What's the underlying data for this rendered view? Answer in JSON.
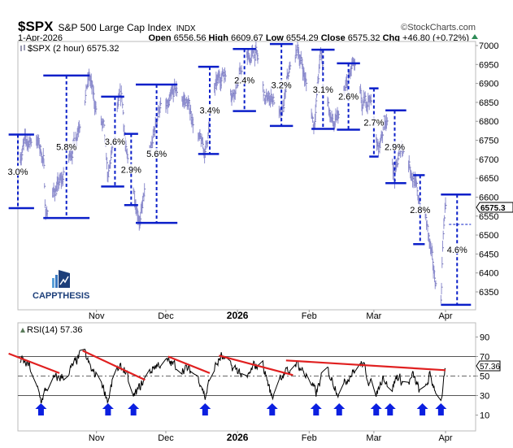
{
  "header": {
    "symbol": "$SPX",
    "name": "S&P 500 Large Cap Index",
    "exchange": "INDX",
    "copyright": "©StockCharts.com",
    "date": "1-Apr-2026",
    "open_label": "Open",
    "open": "6556.56",
    "high_label": "High",
    "high": "6609.67",
    "low_label": "Low",
    "low": "6554.29",
    "close_label": "Close",
    "close": "6575.32",
    "chg_label": "Chg",
    "chg": "+46.80 (+0.72%)",
    "up_color": "#2e8b57"
  },
  "logo": {
    "text": "CAPPTHESIS"
  },
  "chart_data": [
    {
      "type": "ohlc-bars",
      "legend": "$SPX (2 hour) 6575.32",
      "last_value_tag": "6575.3",
      "bar_color": "#8f8fcf",
      "annotation_color": "#0b1fc9",
      "ylim": [
        6310,
        7015
      ],
      "yticks": [
        6350,
        6400,
        6450,
        6500,
        6550,
        6600,
        6650,
        6700,
        6750,
        6800,
        6850,
        6900,
        6950,
        7000
      ],
      "xlim": [
        "2025-09-28",
        "2026-04-14"
      ],
      "xticks": [
        {
          "date": "2025-11-01",
          "label": "Nov"
        },
        {
          "date": "2025-12-01",
          "label": "Dec"
        },
        {
          "date": "2026-01-01",
          "label": "2026",
          "bold": true
        },
        {
          "date": "2026-02-01",
          "label": "Feb"
        },
        {
          "date": "2026-03-01",
          "label": "Mar"
        },
        {
          "date": "2026-04-01",
          "label": "Apr"
        }
      ],
      "price_path": [
        [
          "2025-09-28",
          6700
        ],
        [
          "2025-10-01",
          6740
        ],
        [
          "2025-10-06",
          6760
        ],
        [
          "2025-10-09",
          6700
        ],
        [
          "2025-10-10",
          6560
        ],
        [
          "2025-10-14",
          6620
        ],
        [
          "2025-10-17",
          6640
        ],
        [
          "2025-10-20",
          6700
        ],
        [
          "2025-10-23",
          6760
        ],
        [
          "2025-10-27",
          6880
        ],
        [
          "2025-10-29",
          6915
        ],
        [
          "2025-10-31",
          6850
        ],
        [
          "2025-11-04",
          6780
        ],
        [
          "2025-11-06",
          6640
        ],
        [
          "2025-11-10",
          6830
        ],
        [
          "2025-11-12",
          6860
        ],
        [
          "2025-11-14",
          6700
        ],
        [
          "2025-11-17",
          6620
        ],
        [
          "2025-11-20",
          6540
        ],
        [
          "2025-11-24",
          6700
        ],
        [
          "2025-11-28",
          6840
        ],
        [
          "2025-12-02",
          6830
        ],
        [
          "2025-12-05",
          6880
        ],
        [
          "2025-12-10",
          6850
        ],
        [
          "2025-12-12",
          6820
        ],
        [
          "2025-12-16",
          6740
        ],
        [
          "2025-12-18",
          6720
        ],
        [
          "2025-12-22",
          6880
        ],
        [
          "2025-12-26",
          6935
        ],
        [
          "2025-12-30",
          6880
        ],
        [
          "2026-01-05",
          6960
        ],
        [
          "2026-01-09",
          6980
        ],
        [
          "2026-01-13",
          6850
        ],
        [
          "2026-01-16",
          6870
        ],
        [
          "2026-01-20",
          6800
        ],
        [
          "2026-01-23",
          6920
        ],
        [
          "2026-01-27",
          6990
        ],
        [
          "2026-01-29",
          6950
        ],
        [
          "2026-02-03",
          6790
        ],
        [
          "2026-02-06",
          6980
        ],
        [
          "2026-02-10",
          6820
        ],
        [
          "2026-02-12",
          6780
        ],
        [
          "2026-02-16",
          6860
        ],
        [
          "2026-02-20",
          6950
        ],
        [
          "2026-02-24",
          6830
        ],
        [
          "2026-02-27",
          6870
        ],
        [
          "2026-03-03",
          6720
        ],
        [
          "2026-03-06",
          6820
        ],
        [
          "2026-03-10",
          6650
        ],
        [
          "2026-03-13",
          6740
        ],
        [
          "2026-03-17",
          6680
        ],
        [
          "2026-03-20",
          6600
        ],
        [
          "2026-03-23",
          6560
        ],
        [
          "2026-03-25",
          6480
        ],
        [
          "2026-03-27",
          6390
        ],
        [
          "2026-03-30",
          6330
        ],
        [
          "2026-03-31",
          6520
        ],
        [
          "2026-04-01",
          6575.32
        ]
      ],
      "ranges": [
        {
          "start": "2025-09-24",
          "end": "2025-10-05",
          "mid": "2025-09-28",
          "high": 6765,
          "low": 6571,
          "label": "3.0%"
        },
        {
          "start": "2025-10-09",
          "end": "2025-10-29",
          "mid": "2025-10-19",
          "high": 6921,
          "low": 6545,
          "label": "5.8%"
        },
        {
          "start": "2025-11-03",
          "end": "2025-11-13",
          "mid": "2025-11-09",
          "high": 6865,
          "low": 6628,
          "label": "3.6%"
        },
        {
          "start": "2025-11-13",
          "end": "2025-11-19",
          "mid": "2025-11-16",
          "high": 6767,
          "low": 6579,
          "label": "2.9%"
        },
        {
          "start": "2025-11-18",
          "end": "2025-12-06",
          "mid": "2025-11-27",
          "high": 6897,
          "low": 6532,
          "label": "5.6%"
        },
        {
          "start": "2025-12-15",
          "end": "2025-12-24",
          "mid": "2025-12-20",
          "high": 6944,
          "low": 6714,
          "label": "3.4%"
        },
        {
          "start": "2025-12-30",
          "end": "2026-01-09",
          "mid": "2026-01-04",
          "high": 6991,
          "low": 6827,
          "label": "2.4%"
        },
        {
          "start": "2026-01-15",
          "end": "2026-01-25",
          "mid": "2026-01-20",
          "high": 7004,
          "low": 6788,
          "label": "3.2%"
        },
        {
          "start": "2026-02-02",
          "end": "2026-02-12",
          "mid": "2026-02-07",
          "high": 6989,
          "low": 6780,
          "label": "3.1%"
        },
        {
          "start": "2026-02-13",
          "end": "2026-02-23",
          "mid": "2026-02-18",
          "high": 6953,
          "low": 6778,
          "label": "2.6%"
        },
        {
          "start": "2026-02-27",
          "end": "2026-03-03",
          "mid": "2026-03-01",
          "high": 6887,
          "low": 6707,
          "label": "2.7%"
        },
        {
          "start": "2026-03-06",
          "end": "2026-03-15",
          "mid": "2026-03-10",
          "high": 6829,
          "low": 6637,
          "label": "2.9%"
        },
        {
          "start": "2026-03-18",
          "end": "2026-03-23",
          "mid": "2026-03-21",
          "high": 6658,
          "low": 6476,
          "label": "2.8%"
        },
        {
          "start": "2026-03-30",
          "end": "2026-04-12",
          "mid": "2026-04-06",
          "high": 6607,
          "low": 6316,
          "label": "4.6%",
          "midline": 6528
        }
      ]
    },
    {
      "type": "line",
      "legend": "RSI(14) 57.36",
      "last_value_tag": "57.36",
      "line_color": "#000000",
      "trendline_color": "#e02020",
      "arrow_color": "#0b1fe0",
      "ylim": [
        0,
        100
      ],
      "yticks": [
        10,
        30,
        50,
        70,
        90
      ],
      "reference_lines": [
        30,
        50,
        70
      ],
      "xlim": [
        "2025-09-28",
        "2026-04-14"
      ],
      "rsi_path": [
        [
          "2025-09-28",
          68
        ],
        [
          "2025-10-03",
          60
        ],
        [
          "2025-10-08",
          25
        ],
        [
          "2025-10-12",
          45
        ],
        [
          "2025-10-18",
          50
        ],
        [
          "2025-10-22",
          60
        ],
        [
          "2025-10-25",
          72
        ],
        [
          "2025-10-26",
          77
        ],
        [
          "2025-10-30",
          55
        ],
        [
          "2025-11-03",
          45
        ],
        [
          "2025-11-06",
          25
        ],
        [
          "2025-11-09",
          55
        ],
        [
          "2025-11-13",
          58
        ],
        [
          "2025-11-17",
          28
        ],
        [
          "2025-11-22",
          47
        ],
        [
          "2025-11-26",
          60
        ],
        [
          "2025-12-01",
          65
        ],
        [
          "2025-12-06",
          60
        ],
        [
          "2025-12-12",
          55
        ],
        [
          "2025-12-16",
          45
        ],
        [
          "2025-12-18",
          28
        ],
        [
          "2025-12-21",
          55
        ],
        [
          "2025-12-25",
          70
        ],
        [
          "2025-12-28",
          60
        ],
        [
          "2026-01-02",
          55
        ],
        [
          "2026-01-04",
          40
        ],
        [
          "2026-01-08",
          60
        ],
        [
          "2026-01-12",
          62
        ],
        [
          "2026-01-16",
          27
        ],
        [
          "2026-01-19",
          50
        ],
        [
          "2026-01-24",
          55
        ],
        [
          "2026-01-26",
          65
        ],
        [
          "2026-01-31",
          50
        ],
        [
          "2026-02-04",
          32
        ],
        [
          "2026-02-08",
          60
        ],
        [
          "2026-02-14",
          32
        ],
        [
          "2026-02-18",
          50
        ],
        [
          "2026-02-24",
          63
        ],
        [
          "2026-02-27",
          45
        ],
        [
          "2026-03-02",
          30
        ],
        [
          "2026-03-05",
          52
        ],
        [
          "2026-03-08",
          32
        ],
        [
          "2026-03-11",
          50
        ],
        [
          "2026-03-15",
          40
        ],
        [
          "2026-03-18",
          50
        ],
        [
          "2026-03-22",
          27
        ],
        [
          "2026-03-25",
          50
        ],
        [
          "2026-03-28",
          35
        ],
        [
          "2026-03-30",
          25
        ],
        [
          "2026-04-01",
          57.36
        ]
      ],
      "trendlines": [
        [
          [
            "2025-09-24",
            73
          ],
          [
            "2025-10-16",
            53
          ]
        ],
        [
          [
            "2025-10-26",
            76
          ],
          [
            "2025-11-22",
            46
          ]
        ],
        [
          [
            "2025-12-02",
            70
          ],
          [
            "2025-12-20",
            53
          ]
        ],
        [
          [
            "2025-12-24",
            71
          ],
          [
            "2026-01-25",
            51
          ]
        ],
        [
          [
            "2026-01-22",
            66
          ],
          [
            "2026-04-01",
            56
          ]
        ]
      ],
      "buy_arrows": [
        "2025-10-08",
        "2025-11-06",
        "2025-11-17",
        "2025-12-18",
        "2026-01-16",
        "2026-02-04",
        "2026-02-14",
        "2026-03-02",
        "2026-03-08",
        "2026-03-22",
        "2026-03-30"
      ]
    }
  ]
}
